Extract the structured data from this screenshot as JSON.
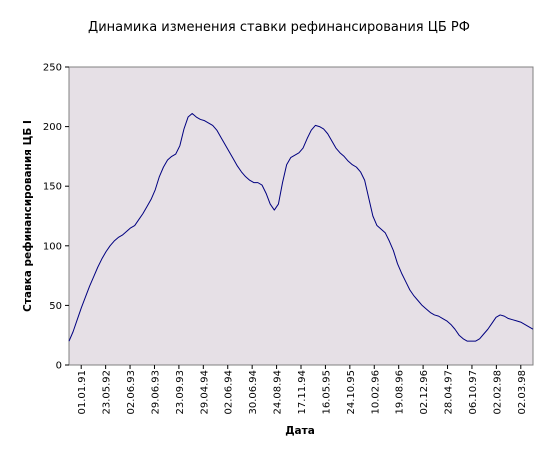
{
  "chart_data": {
    "type": "line",
    "title": "Динамика изменения ставки рефинансирования ЦБ РФ",
    "xlabel": "Дата",
    "ylabel": "Ставка рефинансирования ЦБ I",
    "ylim": [
      0,
      250
    ],
    "yticks": [
      0,
      50,
      100,
      150,
      200,
      250
    ],
    "grid": false,
    "plot_background": "#e6e0e6",
    "line_color": "#000080",
    "xticks": [
      "01.01.91",
      "23.05.92",
      "02.06.93",
      "29.06.93",
      "23.09.93",
      "29.04.94",
      "02.06.94",
      "30.06.94",
      "24.08.94",
      "17.11.94",
      "16.05.95",
      "24.10.95",
      "10.02.96",
      "19.08.96",
      "02.12.96",
      "28.04.97",
      "06.10.97",
      "02.02.98",
      "02.03.98"
    ],
    "series": [
      {
        "values": [
          20,
          28,
          38,
          48,
          57,
          66,
          74,
          82,
          89,
          95,
          100,
          104,
          107,
          109,
          112,
          115,
          117,
          122,
          127,
          133,
          139,
          147,
          158,
          166,
          172,
          175,
          177,
          184,
          198,
          208,
          211,
          208,
          206,
          205,
          203,
          201,
          197,
          191,
          185,
          179,
          173,
          167,
          162,
          158,
          155,
          153,
          153,
          151,
          144,
          135,
          130,
          135,
          153,
          168,
          174,
          176,
          178,
          182,
          190,
          197,
          201,
          200,
          198,
          194,
          188,
          182,
          178,
          175,
          171,
          168,
          166,
          162,
          155,
          140,
          125,
          117,
          114,
          111,
          104,
          96,
          85,
          77,
          70,
          63,
          58,
          54,
          50,
          47,
          44,
          42,
          41,
          39,
          37,
          34,
          30,
          25,
          22,
          20,
          20,
          20,
          22,
          26,
          30,
          35,
          40,
          42,
          41,
          39,
          38,
          37,
          36,
          34,
          32,
          30
        ]
      }
    ]
  }
}
